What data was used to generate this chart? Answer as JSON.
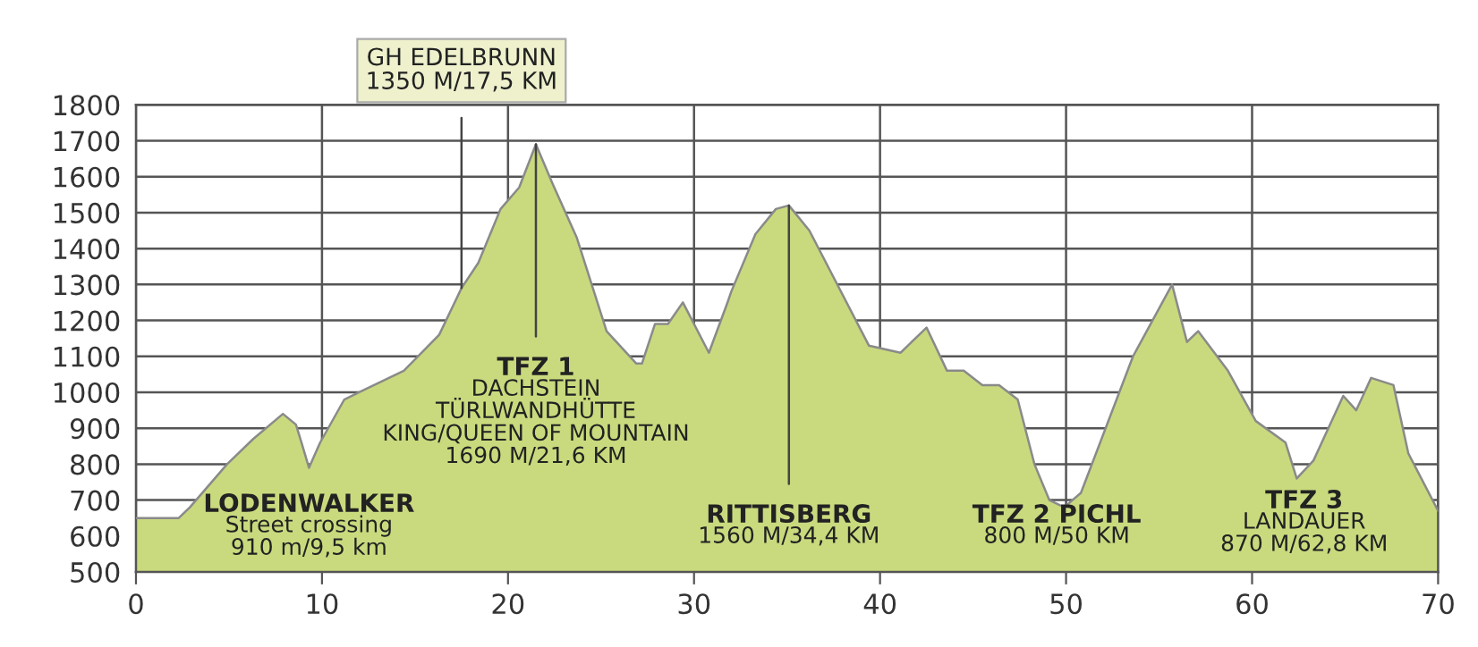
{
  "chart_data": {
    "type": "area",
    "x": [
      0,
      2.3,
      2.9,
      4.9,
      6.3,
      7.9,
      8.6,
      8.9,
      9.3,
      9.9,
      11.2,
      12,
      14.4,
      16.3,
      17.5,
      18.4,
      19.6,
      20.6,
      21.5,
      22.4,
      23.7,
      25.3,
      26.9,
      27.2,
      27.9,
      28.6,
      29.4,
      30.8,
      31.8,
      32,
      33.3,
      34.4,
      35.1,
      36.2,
      39.4,
      41.1,
      42.5,
      43.6,
      44.5,
      45.5,
      46.4,
      47.4,
      48.3,
      49.1,
      49.9,
      50.8,
      53.6,
      55.7,
      56.5,
      57.1,
      58.7,
      60.2,
      61.8,
      62.4,
      63.3,
      64.9,
      65.6,
      66.4,
      67.6,
      68.4,
      70
    ],
    "series": [
      {
        "color": "#c9da7e",
        "values": [
          650,
          650,
          680,
          800,
          870,
          940,
          910,
          860,
          790,
          860,
          980,
          1000,
          1060,
          1160,
          1290,
          1360,
          1510,
          1570,
          1690,
          1580,
          1430,
          1170,
          1080,
          1080,
          1190,
          1190,
          1250,
          1110,
          1250,
          1280,
          1440,
          1510,
          1520,
          1450,
          1130,
          1110,
          1180,
          1060,
          1060,
          1020,
          1020,
          980,
          800,
          700,
          680,
          720,
          1100,
          1300,
          1140,
          1170,
          1060,
          920,
          860,
          760,
          810,
          990,
          950,
          1040,
          1020,
          830,
          670
        ]
      }
    ],
    "xlim": [
      0,
      70
    ],
    "ylim": [
      500,
      1800
    ],
    "xticks": [
      0,
      10,
      20,
      30,
      40,
      50,
      60,
      70
    ],
    "yticks": [
      500,
      600,
      700,
      800,
      900,
      1000,
      1100,
      1200,
      1300,
      1400,
      1500,
      1600,
      1700,
      1800
    ],
    "grid": true,
    "annotations": [
      "LODENWALKER\nStreet crossing\n910 m/9,5 km",
      {
        "text": "GH EDELBRUNN\n1350 M/17,5 KM",
        "x": 17.5,
        "y": 1290
      },
      {
        "text": "TFZ 1\nDACHSTEIN\nTÜRLWANDHÜTTE\nKING/QUEEN OF MOUNTAIN\n1690 M/21,6 KM",
        "x": 21.5,
        "y": 1690
      },
      {
        "text": "RITTISBERG\n1560 M/34,4 KM",
        "x": 35.1,
        "y": 1520
      },
      "TFZ 2 PICHL\n800 M/50 KM",
      "TFZ 3\nLANDAUER\n870 M/62,8 KM"
    ]
  }
}
